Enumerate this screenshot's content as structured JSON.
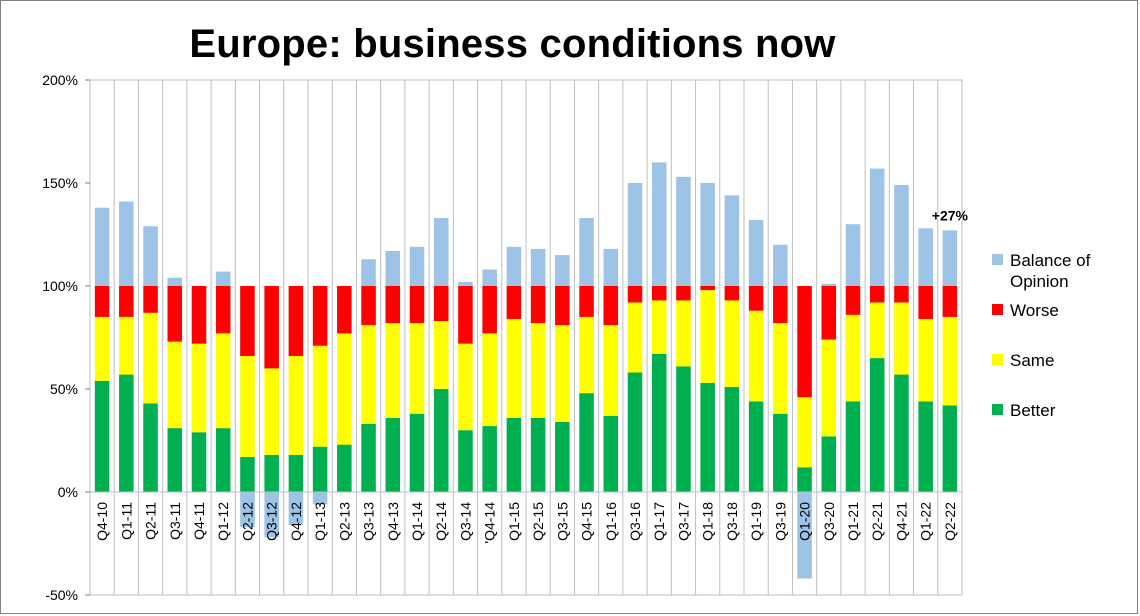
{
  "chart_data": {
    "type": "bar",
    "stacked": true,
    "title": "Europe: business conditions now",
    "xlabel": "",
    "ylabel": "",
    "ylim": [
      -50,
      200
    ],
    "yticks": [
      "200%",
      "150%",
      "100%",
      "50%",
      "0%",
      "-50%"
    ],
    "ytick_values": [
      200,
      150,
      100,
      50,
      0,
      -50
    ],
    "grid": "vertical category separators",
    "legend_position": "right",
    "categories": [
      "Q4-10",
      "Q1-11",
      "Q2-11",
      "Q3-11",
      "Q4-11",
      "Q1-12",
      "Q2-12",
      "Q3-12",
      "Q4-12",
      "Q1-13",
      "Q2-13",
      "Q3-13",
      "Q4-13",
      "Q1-14",
      "Q2-14",
      "Q3-14",
      "'Q4-14",
      "Q1-15",
      "Q2-15",
      "Q3-15",
      "Q4-15",
      "Q1-16",
      "Q3-16",
      "Q1-17",
      "Q3-17",
      "Q1-18",
      "Q3-18",
      "Q1-19",
      "Q3-19",
      "Q1-20",
      "Q3-20",
      "Q1-21",
      "Q2-21",
      "Q4-21",
      "Q1-22",
      "Q2-22"
    ],
    "series": [
      {
        "name": "Better",
        "color": "#00b050",
        "values": [
          54,
          57,
          43,
          31,
          29,
          31,
          17,
          18,
          18,
          22,
          23,
          33,
          36,
          38,
          50,
          30,
          32,
          36,
          36,
          34,
          48,
          37,
          58,
          67,
          61,
          53,
          51,
          44,
          38,
          12,
          27,
          44,
          65,
          57,
          44,
          42
        ]
      },
      {
        "name": "Same",
        "color": "#ffff00",
        "values": [
          31,
          28,
          44,
          42,
          43,
          46,
          49,
          42,
          48,
          49,
          54,
          48,
          46,
          44,
          33,
          42,
          45,
          48,
          46,
          47,
          37,
          44,
          34,
          26,
          32,
          45,
          42,
          44,
          44,
          34,
          47,
          42,
          27,
          35,
          40,
          43
        ]
      },
      {
        "name": "Worse",
        "color": "#ff0000",
        "values": [
          15,
          15,
          13,
          27,
          28,
          23,
          34,
          40,
          34,
          29,
          23,
          19,
          18,
          18,
          17,
          28,
          23,
          16,
          18,
          19,
          15,
          19,
          8,
          7,
          7,
          2,
          7,
          12,
          18,
          54,
          26,
          14,
          8,
          8,
          16,
          15
        ]
      },
      {
        "name": "Balance of Opinion",
        "color": "#9dc3e6",
        "values": [
          38,
          41,
          29,
          4,
          0,
          7,
          -17,
          -22,
          -16,
          -6,
          0,
          13,
          17,
          19,
          33,
          2,
          8,
          19,
          18,
          15,
          33,
          18,
          50,
          60,
          53,
          50,
          44,
          32,
          20,
          -42,
          1,
          30,
          57,
          49,
          28,
          27
        ]
      }
    ],
    "annotations": [
      {
        "text": "+27%",
        "category": "Q2-22"
      }
    ]
  }
}
